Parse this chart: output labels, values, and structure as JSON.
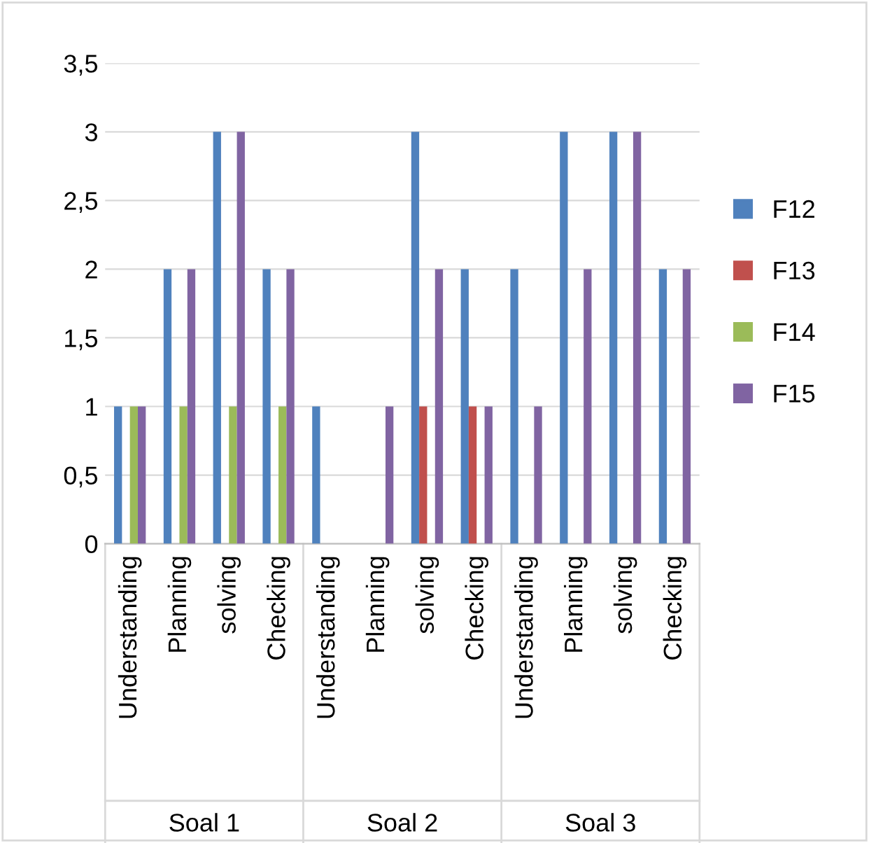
{
  "chart_data": {
    "type": "bar",
    "categories": [
      "Understanding",
      "Planning",
      "solving",
      "Checking",
      "Understanding",
      "Planning",
      "solving",
      "Checking",
      "Understanding",
      "Planning",
      "solving",
      "Checking"
    ],
    "series": [
      {
        "name": "F12",
        "color": "#4f81bd",
        "values": [
          1,
          2,
          3,
          2,
          1,
          0,
          3,
          2,
          2,
          3,
          3,
          2
        ]
      },
      {
        "name": "F13",
        "color": "#c0504d",
        "values": [
          0,
          0,
          0,
          0,
          0,
          0,
          1,
          1,
          0,
          0,
          0,
          0
        ]
      },
      {
        "name": "F14",
        "color": "#9bbb59",
        "values": [
          1,
          1,
          1,
          1,
          0,
          0,
          0,
          0,
          0,
          0,
          0,
          0
        ]
      },
      {
        "name": "F15",
        "color": "#8064a2",
        "values": [
          1,
          2,
          3,
          2,
          0,
          1,
          2,
          1,
          1,
          2,
          3,
          2
        ]
      }
    ],
    "annotations": [
      "Soal 1",
      "Soal 2",
      "Soal 3"
    ],
    "ylim": [
      0,
      3.5
    ],
    "yticks": [
      0,
      {
        "value": 0.5,
        "label": "0,5"
      },
      1,
      {
        "value": 1.5,
        "label": "1,5"
      },
      2,
      {
        "value": 2.5,
        "label": "2,5"
      },
      3,
      {
        "value": 3.5,
        "label": "3,5"
      }
    ],
    "grid": "y",
    "legend": "right"
  }
}
